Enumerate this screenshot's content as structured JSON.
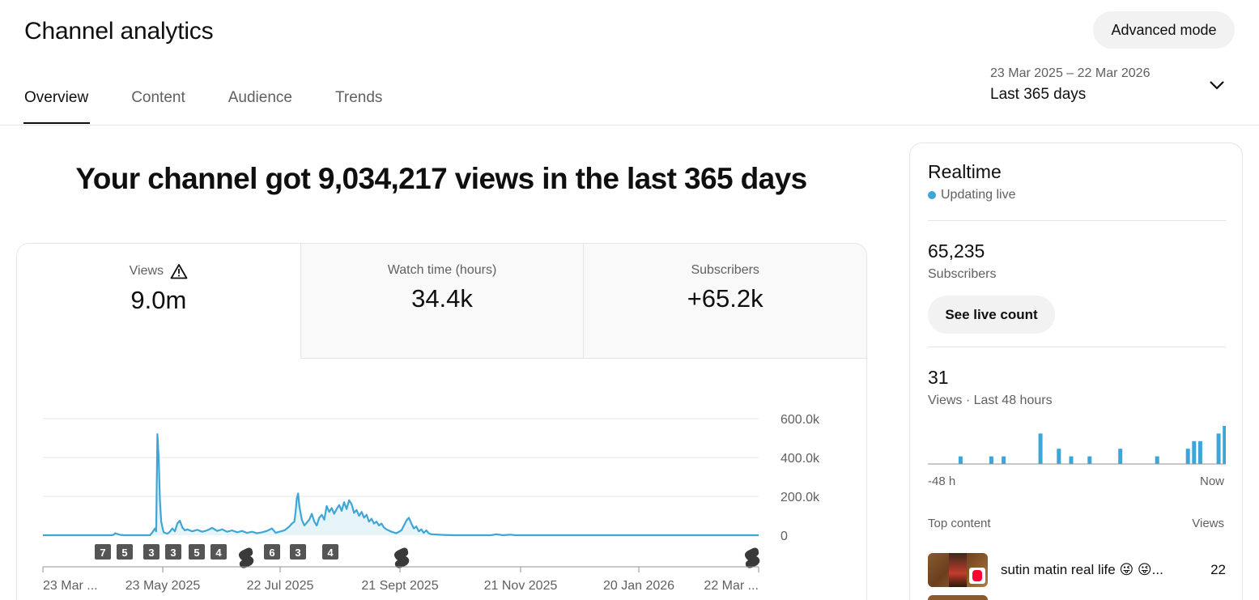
{
  "header": {
    "title": "Channel analytics",
    "advanced_mode_label": "Advanced mode"
  },
  "tabs": [
    {
      "label": "Overview",
      "active": true
    },
    {
      "label": "Content",
      "active": false
    },
    {
      "label": "Audience",
      "active": false
    },
    {
      "label": "Trends",
      "active": false
    }
  ],
  "date_picker": {
    "range": "23 Mar 2025 – 22 Mar 2026",
    "label": "Last 365 days",
    "icon": "chevron-down-icon"
  },
  "headline": "Your channel got 9,034,217 views in the last 365 days",
  "metrics": [
    {
      "label": "Views",
      "value": "9.0m",
      "icon": "warning-icon",
      "active": true
    },
    {
      "label": "Watch time (hours)",
      "value": "34.4k",
      "active": false
    },
    {
      "label": "Subscribers",
      "value": "+65.2k",
      "active": false
    }
  ],
  "chart_data": {
    "type": "area",
    "title": "",
    "xlabel": "",
    "ylabel": "",
    "ylim": [
      0,
      600000
    ],
    "y_ticks": [
      "600.0k",
      "400.0k",
      "200.0k",
      "0"
    ],
    "x_tick_labels": [
      "23 Mar ...",
      "23 May 2025",
      "22 Jul 2025",
      "21 Sept 2025",
      "21 Nov 2025",
      "20 Jan 2026",
      "22 Mar ..."
    ],
    "series": [
      {
        "values": [
          [
            0,
            0
          ],
          [
            55,
            0
          ],
          [
            57,
            3000
          ],
          [
            58,
            10000
          ],
          [
            60,
            6000
          ],
          [
            62,
            2000
          ],
          [
            65,
            0
          ],
          [
            86,
            0
          ],
          [
            88,
            15000
          ],
          [
            90,
            35000
          ],
          [
            91,
            20000
          ],
          [
            92,
            520000
          ],
          [
            93,
            400000
          ],
          [
            94,
            180000
          ],
          [
            95,
            70000
          ],
          [
            96,
            40000
          ],
          [
            97,
            15000
          ],
          [
            100,
            8000
          ],
          [
            102,
            18000
          ],
          [
            104,
            35000
          ],
          [
            106,
            20000
          ],
          [
            108,
            60000
          ],
          [
            110,
            75000
          ],
          [
            112,
            40000
          ],
          [
            114,
            25000
          ],
          [
            116,
            30000
          ],
          [
            120,
            20000
          ],
          [
            124,
            28000
          ],
          [
            128,
            18000
          ],
          [
            132,
            25000
          ],
          [
            136,
            38000
          ],
          [
            140,
            22000
          ],
          [
            144,
            30000
          ],
          [
            148,
            18000
          ],
          [
            152,
            25000
          ],
          [
            156,
            15000
          ],
          [
            160,
            22000
          ],
          [
            164,
            12000
          ],
          [
            168,
            18000
          ],
          [
            172,
            10000
          ],
          [
            176,
            15000
          ],
          [
            180,
            22000
          ],
          [
            184,
            35000
          ],
          [
            187,
            12000
          ],
          [
            190,
            18000
          ],
          [
            194,
            25000
          ],
          [
            198,
            45000
          ],
          [
            200,
            60000
          ],
          [
            202,
            70000
          ],
          [
            203,
            120000
          ],
          [
            204,
            190000
          ],
          [
            205,
            215000
          ],
          [
            206,
            150000
          ],
          [
            208,
            80000
          ],
          [
            210,
            50000
          ],
          [
            214,
            80000
          ],
          [
            216,
            110000
          ],
          [
            218,
            70000
          ],
          [
            220,
            50000
          ],
          [
            222,
            90000
          ],
          [
            224,
            105000
          ],
          [
            226,
            80000
          ],
          [
            228,
            150000
          ],
          [
            230,
            120000
          ],
          [
            232,
            140000
          ],
          [
            234,
            110000
          ],
          [
            236,
            135000
          ],
          [
            238,
            155000
          ],
          [
            240,
            125000
          ],
          [
            242,
            170000
          ],
          [
            244,
            135000
          ],
          [
            246,
            180000
          ],
          [
            248,
            160000
          ],
          [
            250,
            115000
          ],
          [
            252,
            130000
          ],
          [
            254,
            100000
          ],
          [
            256,
            120000
          ],
          [
            258,
            90000
          ],
          [
            260,
            105000
          ],
          [
            262,
            70000
          ],
          [
            264,
            85000
          ],
          [
            266,
            60000
          ],
          [
            268,
            70000
          ],
          [
            270,
            50000
          ],
          [
            272,
            60000
          ],
          [
            274,
            40000
          ],
          [
            276,
            30000
          ],
          [
            280,
            18000
          ],
          [
            284,
            10000
          ],
          [
            288,
            25000
          ],
          [
            292,
            75000
          ],
          [
            294,
            90000
          ],
          [
            296,
            60000
          ],
          [
            298,
            35000
          ],
          [
            300,
            45000
          ],
          [
            302,
            20000
          ],
          [
            304,
            30000
          ],
          [
            306,
            12000
          ],
          [
            308,
            25000
          ],
          [
            310,
            10000
          ],
          [
            312,
            5000
          ],
          [
            320,
            2000
          ],
          [
            330,
            0
          ],
          [
            360,
            0
          ],
          [
            364,
            5000
          ],
          [
            370,
            0
          ],
          [
            375,
            3000
          ],
          [
            380,
            0
          ],
          [
            540,
            0
          ],
          [
            575,
            0
          ]
        ]
      }
    ],
    "upload_markers": [
      "7",
      "5",
      "3",
      "3",
      "5",
      "4",
      "shorts",
      "6",
      "3",
      "4",
      "shorts",
      "shorts"
    ]
  },
  "realtime": {
    "title": "Realtime",
    "status": "Updating live",
    "subscribers_value": "65,235",
    "subscribers_label": "Subscribers",
    "live_count_label": "See live count",
    "views_value": "31",
    "views_label": "Views · Last 48 hours",
    "axis_start": "-48 h",
    "axis_end": "Now",
    "bars_48h": [
      0,
      0,
      0,
      0,
      0,
      0,
      0,
      0,
      0,
      0,
      1,
      0,
      0,
      0,
      0,
      0,
      0,
      0,
      0,
      0,
      1,
      0,
      0,
      0,
      1,
      0,
      0,
      0,
      0,
      0,
      0,
      0,
      0,
      0,
      0,
      0,
      4,
      0,
      0,
      0,
      0,
      0,
      2,
      0,
      0,
      0,
      1,
      0,
      0,
      0,
      0,
      0,
      1,
      0,
      0,
      0,
      0,
      0,
      0,
      0,
      0,
      0,
      2,
      0,
      0,
      0,
      0,
      0,
      0,
      0,
      0,
      0,
      0,
      0,
      1,
      0,
      0,
      0,
      0,
      0,
      0,
      0,
      0,
      0,
      2,
      0,
      3,
      0,
      3,
      0,
      0,
      0,
      0,
      0,
      4,
      0,
      5
    ],
    "top_content_label": "Top content",
    "top_content_views_label": "Views",
    "top_content": [
      {
        "title": "sutin matin real life 😜 😜...",
        "views": "22"
      }
    ]
  }
}
